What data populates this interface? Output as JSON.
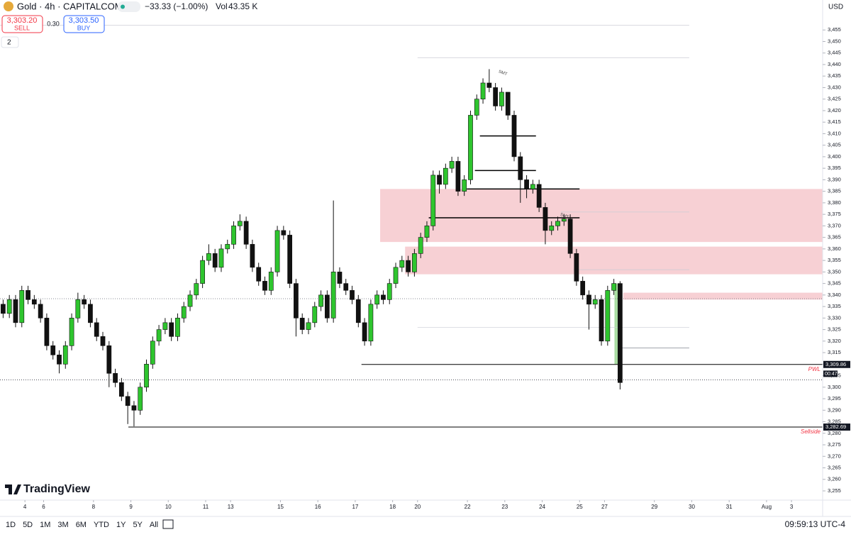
{
  "header": {
    "symbol": "Gold · 4h · CAPITALCOM",
    "change": "−33.33 (−1.00%)",
    "vol_label": "Vol",
    "vol": "43.35 K",
    "sell_price": "3,303.20",
    "sell": "SELL",
    "spread": "0.30",
    "buy_price": "3,303.50",
    "buy": "BUY",
    "indicator_count": "2"
  },
  "logo": "TradingView",
  "toolbar": {
    "ranges": [
      "1D",
      "5D",
      "1M",
      "3M",
      "6M",
      "YTD",
      "1Y",
      "5Y",
      "All"
    ],
    "clock": "09:59:13 UTC-4"
  },
  "chart_data": {
    "type": "candlestick",
    "currency": "USD",
    "up_color": "#2ec52e",
    "down_color": "#111111",
    "xlim": [
      0,
      132
    ],
    "ylim": [
      3251,
      3468
    ],
    "xticks": [
      {
        "value": 4,
        "label": "4"
      },
      {
        "value": 7,
        "label": "6"
      },
      {
        "value": 15,
        "label": "8"
      },
      {
        "value": 21,
        "label": "9"
      },
      {
        "value": 27,
        "label": "10"
      },
      {
        "value": 33,
        "label": "11"
      },
      {
        "value": 37,
        "label": "13"
      },
      {
        "value": 45,
        "label": "15"
      },
      {
        "value": 51,
        "label": "16"
      },
      {
        "value": 57,
        "label": "17"
      },
      {
        "value": 63,
        "label": "18"
      },
      {
        "value": 67,
        "label": "20"
      },
      {
        "value": 75,
        "label": "22"
      },
      {
        "value": 81,
        "label": "23"
      },
      {
        "value": 87,
        "label": "24"
      },
      {
        "value": 93,
        "label": "25"
      },
      {
        "value": 97,
        "label": "27"
      },
      {
        "value": 105,
        "label": "29"
      },
      {
        "value": 111,
        "label": "30"
      },
      {
        "value": 117,
        "label": "31"
      },
      {
        "value": 123,
        "label": "Aug"
      },
      {
        "value": 127,
        "label": "3"
      }
    ],
    "yticks": [
      {
        "value": 3255,
        "label": "3,255"
      },
      {
        "value": 3260,
        "label": "3,260"
      },
      {
        "value": 3265,
        "label": "3,265"
      },
      {
        "value": 3270,
        "label": "3,270"
      },
      {
        "value": 3275,
        "label": "3,275"
      },
      {
        "value": 3280,
        "label": "3,280"
      },
      {
        "value": 3285,
        "label": "3,285"
      },
      {
        "value": 3290,
        "label": "3,290"
      },
      {
        "value": 3295,
        "label": "3,295"
      },
      {
        "value": 3300,
        "label": "3,300"
      },
      {
        "value": 3305,
        "label": "3,305"
      },
      {
        "value": 3310,
        "label": "3,310"
      },
      {
        "value": 3315,
        "label": "3,315"
      },
      {
        "value": 3320,
        "label": "3,320"
      },
      {
        "value": 3325,
        "label": "3,325"
      },
      {
        "value": 3330,
        "label": "3,330"
      },
      {
        "value": 3335,
        "label": "3,335"
      },
      {
        "value": 3340,
        "label": "3,340"
      },
      {
        "value": 3345,
        "label": "3,345"
      },
      {
        "value": 3350,
        "label": "3,350"
      },
      {
        "value": 3355,
        "label": "3,355"
      },
      {
        "value": 3360,
        "label": "3,360"
      },
      {
        "value": 3365,
        "label": "3,365"
      },
      {
        "value": 3370,
        "label": "3,370"
      },
      {
        "value": 3375,
        "label": "3,375"
      },
      {
        "value": 3380,
        "label": "3,380"
      },
      {
        "value": 3385,
        "label": "3,385"
      },
      {
        "value": 3390,
        "label": "3,390"
      },
      {
        "value": 3395,
        "label": "3,395"
      },
      {
        "value": 3400,
        "label": "3,400"
      },
      {
        "value": 3405,
        "label": "3,405"
      },
      {
        "value": 3410,
        "label": "3,410"
      },
      {
        "value": 3415,
        "label": "3,415"
      },
      {
        "value": 3420,
        "label": "3,420"
      },
      {
        "value": 3425,
        "label": "3,425"
      },
      {
        "value": 3430,
        "label": "3,430"
      },
      {
        "value": 3435,
        "label": "3,435"
      },
      {
        "value": 3440,
        "label": "3,440"
      },
      {
        "value": 3445,
        "label": "3,445"
      },
      {
        "value": 3450,
        "label": "3,450"
      },
      {
        "value": 3455,
        "label": "3,455"
      }
    ],
    "open": [
      3336,
      3332,
      3338,
      3328,
      3342,
      3338,
      3336,
      3330,
      3318,
      3314,
      3310,
      3318,
      3330,
      3338,
      3336,
      3328,
      3322,
      3318,
      3306,
      3302,
      3296,
      3292,
      3290,
      3300,
      3310,
      3320,
      3325,
      3328,
      3322,
      3330,
      3335,
      3340,
      3345,
      3355,
      3358,
      3352,
      3360,
      3362,
      3370,
      3372,
      3362,
      3352,
      3346,
      3342,
      3350,
      3368,
      3366,
      3345,
      3330,
      3325,
      3328,
      3335,
      3340,
      3330,
      3350,
      3345,
      3342,
      3338,
      3328,
      3320,
      3336,
      3340,
      3338,
      3345,
      3352,
      3355,
      3350,
      3358,
      3365,
      3370,
      3392,
      3388,
      3395,
      3398,
      3385,
      3390,
      3418,
      3425,
      3432,
      3430,
      3422,
      3428,
      3418,
      3400,
      3390,
      3386,
      3388,
      3378,
      3368,
      3370,
      3372,
      3373,
      3358,
      3346,
      3340,
      3336,
      3338,
      3320,
      3342,
      3345
    ],
    "high": [
      3338,
      3340,
      3340,
      3344,
      3344,
      3340,
      3338,
      3332,
      3320,
      3316,
      3320,
      3332,
      3341,
      3340,
      3338,
      3330,
      3324,
      3320,
      3308,
      3304,
      3298,
      3294,
      3302,
      3312,
      3322,
      3327,
      3330,
      3330,
      3332,
      3337,
      3342,
      3347,
      3357,
      3362,
      3360,
      3362,
      3364,
      3372,
      3375,
      3374,
      3364,
      3354,
      3348,
      3352,
      3370,
      3370,
      3368,
      3347,
      3332,
      3330,
      3337,
      3342,
      3342,
      3381,
      3352,
      3347,
      3344,
      3340,
      3330,
      3338,
      3342,
      3342,
      3347,
      3354,
      3357,
      3357,
      3360,
      3367,
      3372,
      3394,
      3394,
      3397,
      3400,
      3400,
      3392,
      3420,
      3427,
      3434,
      3438,
      3432,
      3430,
      3428,
      3420,
      3402,
      3392,
      3390,
      3390,
      3380,
      3372,
      3374,
      3375,
      3375,
      3360,
      3348,
      3342,
      3340,
      3340,
      3344,
      3347,
      3346
    ],
    "low": [
      3330,
      3330,
      3326,
      3326,
      3336,
      3334,
      3328,
      3316,
      3312,
      3306,
      3308,
      3316,
      3328,
      3334,
      3326,
      3320,
      3316,
      3300,
      3300,
      3294,
      3284,
      3283,
      3288,
      3298,
      3308,
      3318,
      3323,
      3320,
      3320,
      3328,
      3333,
      3338,
      3343,
      3353,
      3350,
      3350,
      3358,
      3360,
      3368,
      3360,
      3350,
      3344,
      3340,
      3340,
      3348,
      3364,
      3343,
      3322,
      3323,
      3323,
      3326,
      3333,
      3328,
      3328,
      3343,
      3340,
      3336,
      3326,
      3318,
      3318,
      3334,
      3336,
      3336,
      3343,
      3350,
      3348,
      3348,
      3356,
      3363,
      3368,
      3384,
      3386,
      3393,
      3383,
      3383,
      3388,
      3416,
      3423,
      3428,
      3420,
      3420,
      3416,
      3398,
      3380,
      3382,
      3384,
      3376,
      3362,
      3366,
      3368,
      3370,
      3356,
      3344,
      3338,
      3325,
      3334,
      3318,
      3318,
      3340,
      3299
    ],
    "close": [
      3332,
      3338,
      3328,
      3342,
      3338,
      3336,
      3330,
      3318,
      3314,
      3310,
      3318,
      3330,
      3338,
      3336,
      3328,
      3322,
      3318,
      3306,
      3302,
      3296,
      3292,
      3290,
      3300,
      3310,
      3320,
      3325,
      3328,
      3322,
      3330,
      3335,
      3340,
      3345,
      3355,
      3358,
      3352,
      3360,
      3362,
      3370,
      3372,
      3362,
      3352,
      3346,
      3342,
      3350,
      3368,
      3366,
      3345,
      3330,
      3325,
      3328,
      3335,
      3340,
      3330,
      3350,
      3345,
      3342,
      3338,
      3328,
      3320,
      3336,
      3340,
      3338,
      3345,
      3352,
      3355,
      3350,
      3358,
      3365,
      3370,
      3392,
      3388,
      3395,
      3398,
      3385,
      3390,
      3418,
      3425,
      3432,
      3430,
      3422,
      3428,
      3418,
      3400,
      3390,
      3386,
      3388,
      3378,
      3368,
      3370,
      3372,
      3373,
      3358,
      3346,
      3340,
      3336,
      3338,
      3320,
      3342,
      3345,
      3302
    ],
    "zones": [
      {
        "from": 61,
        "to": 132,
        "low": 3363,
        "high": 3386,
        "color": "#f7d0d4"
      },
      {
        "from": 65,
        "to": 132,
        "low": 3349,
        "high": 3361,
        "color": "#f7d0d4"
      },
      {
        "from": 100,
        "to": 132,
        "low": 3338,
        "high": 3341,
        "color": "#f7d0d4"
      },
      {
        "from": 98.6,
        "to": 99.3,
        "low": 3310,
        "high": 3345,
        "color": "#a9dca2"
      }
    ],
    "levels": [
      {
        "value": 3457,
        "from": 0,
        "to": 110.6,
        "style": "faint"
      },
      {
        "value": 3443,
        "from": 67,
        "to": 110.6,
        "style": "faint"
      },
      {
        "value": 3376,
        "from": 90,
        "to": 110.6,
        "style": "faint"
      },
      {
        "value": 3351,
        "from": 92,
        "to": 110.6,
        "style": "faint"
      },
      {
        "value": 3326,
        "from": 67,
        "to": 110.6,
        "style": "faint"
      },
      {
        "value": 3409,
        "from": 77,
        "to": 86,
        "style": "solid"
      },
      {
        "value": 3394,
        "from": 76.2,
        "to": 86,
        "style": "solid"
      },
      {
        "value": 3386,
        "from": 74.9,
        "to": 93,
        "style": "solid"
      },
      {
        "value": 3373.5,
        "from": 68.8,
        "to": 93,
        "style": "solid"
      },
      {
        "value": 3317,
        "from": 99.6,
        "to": 110.6,
        "style": "gray"
      },
      {
        "value": 3338.4,
        "from": 0,
        "to": 132,
        "style": "dotted"
      }
    ],
    "key_levels": [
      {
        "value": 3309.86,
        "label": "3,309.86",
        "from": 58,
        "to": 132,
        "text": "PWL"
      },
      {
        "value": 3282.69,
        "label": "3,282.69",
        "from": 20.6,
        "to": 132,
        "text": "Sellside"
      }
    ],
    "current": {
      "value": 3303.2,
      "countdown": "00:47"
    },
    "annotations": [
      {
        "text": "SMT",
        "x": 80,
        "price": 3437
      },
      {
        "text": "SMT",
        "x": 89.9,
        "price": 3375
      }
    ]
  }
}
